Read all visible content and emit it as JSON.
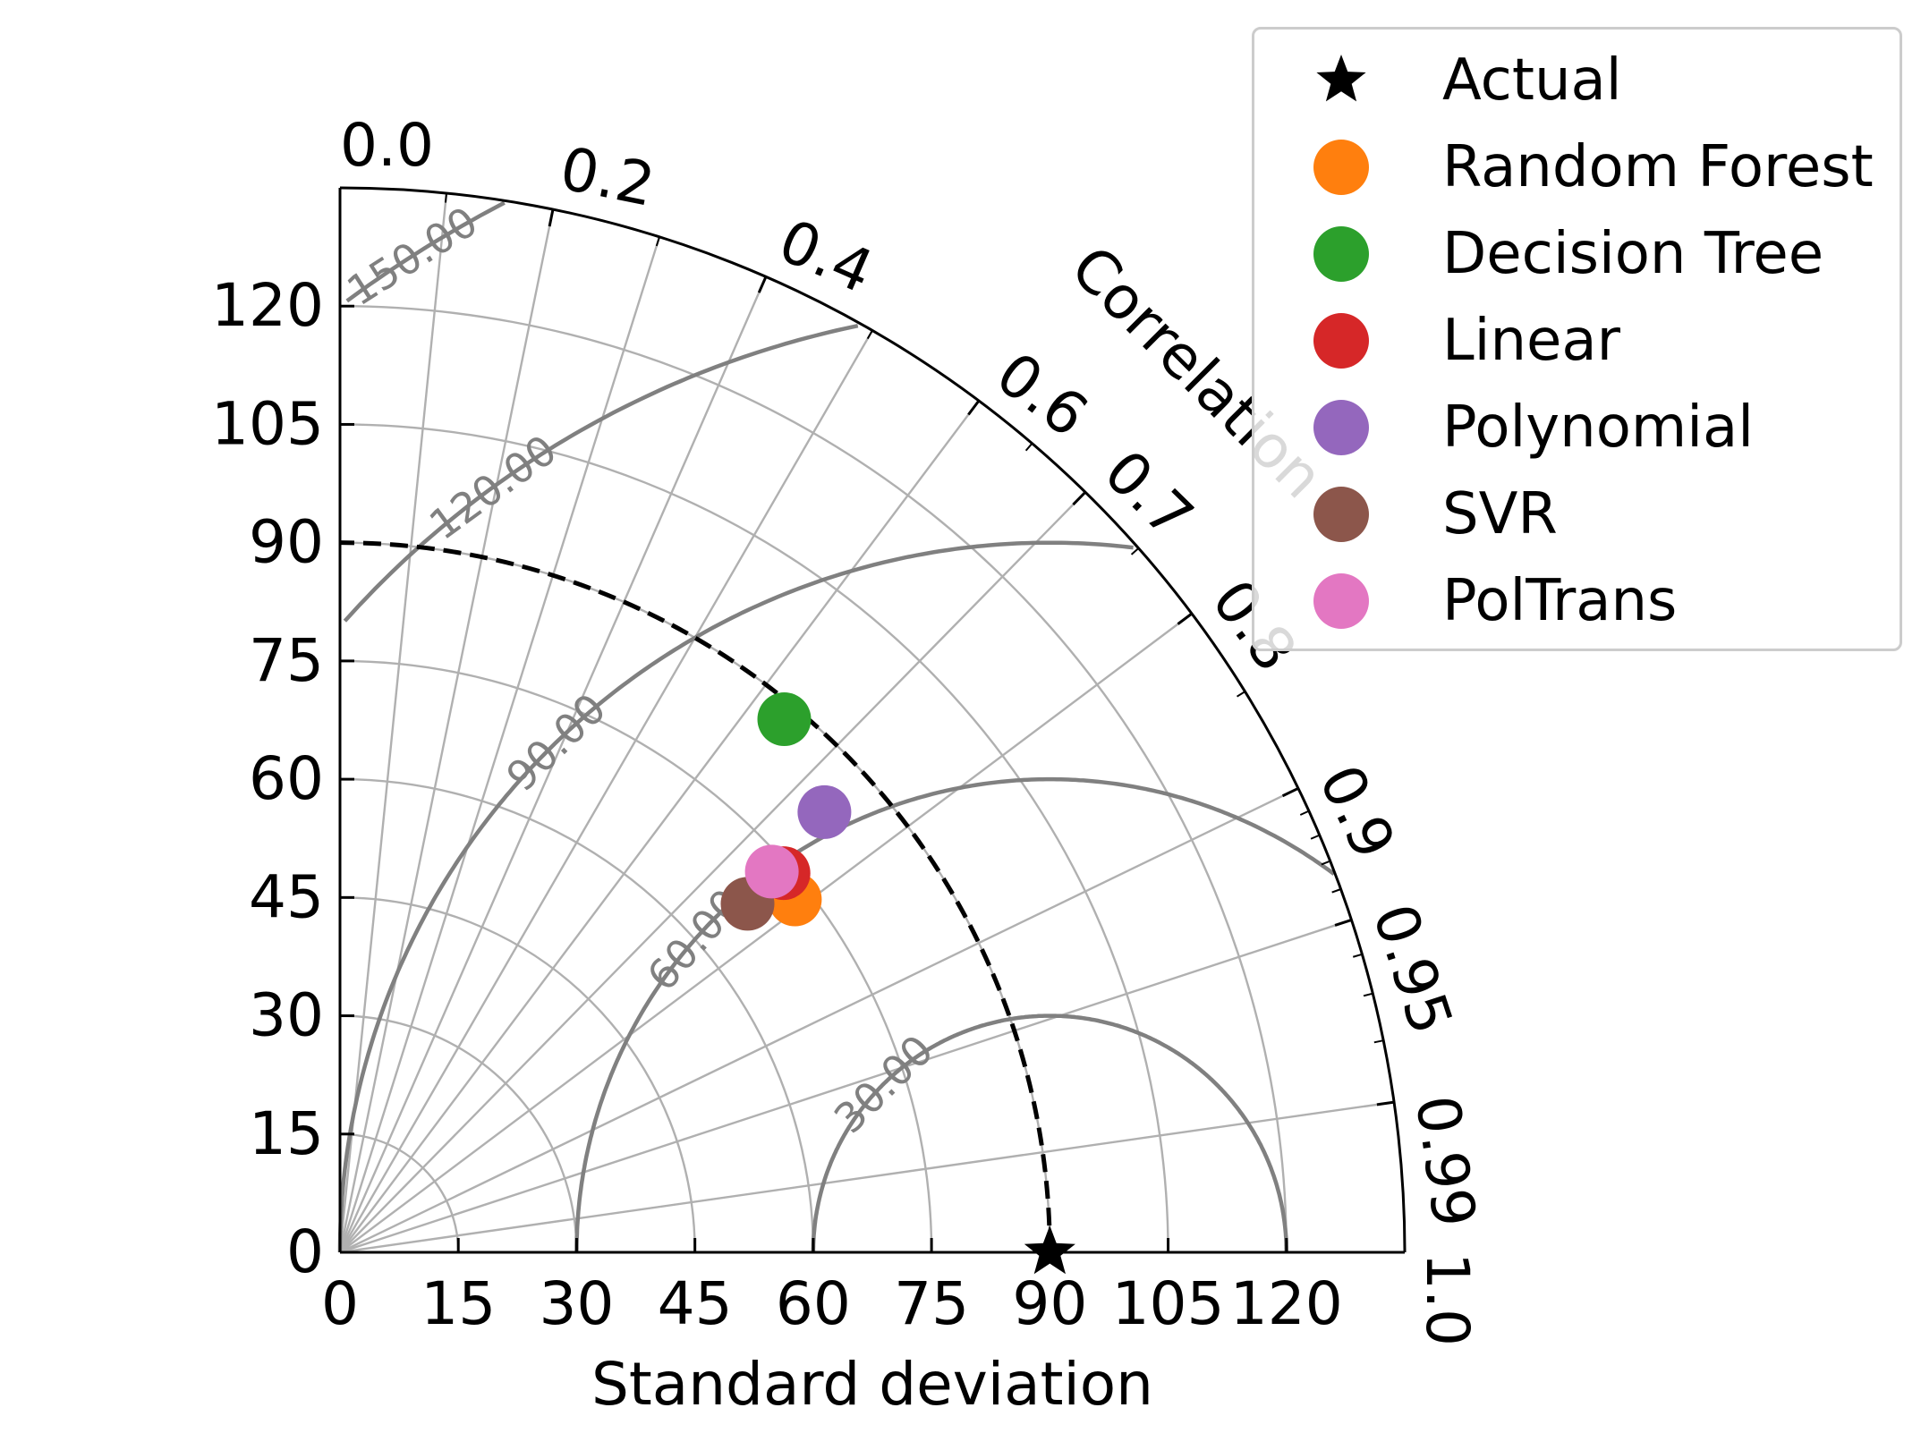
{
  "chart_data": {
    "type": "taylor",
    "xlabel": "Standard deviation",
    "arc_label": "Correlation",
    "std_ticks": [
      0,
      15,
      30,
      45,
      60,
      75,
      90,
      105,
      120
    ],
    "std_max": 135,
    "corr_ticks": [
      "0.0",
      "0.2",
      "0.4",
      "0.6",
      "0.7",
      "0.8",
      "0.9",
      "0.95",
      "0.99",
      "1.0"
    ],
    "rms_contours": [
      30,
      60,
      90,
      120,
      150
    ],
    "rms_labels": [
      "30.00",
      "60.00",
      "90.00",
      "120.00",
      "150.00"
    ],
    "reference": {
      "name": "Actual",
      "std": 90,
      "color": "#000000",
      "marker": "star"
    },
    "series": [
      {
        "name": "Random Forest",
        "std": 73,
        "corr": 0.79,
        "color": "#ff7f0e"
      },
      {
        "name": "Decision Tree",
        "std": 88,
        "corr": 0.64,
        "color": "#2ca02c"
      },
      {
        "name": "Linear",
        "std": 74,
        "corr": 0.76,
        "color": "#d62728"
      },
      {
        "name": "Polynomial",
        "std": 83,
        "corr": 0.74,
        "color": "#9467bd"
      },
      {
        "name": "SVR",
        "std": 68,
        "corr": 0.76,
        "color": "#8c564b"
      },
      {
        "name": "PolTrans",
        "std": 73,
        "corr": 0.75,
        "color": "#e377c2"
      }
    ],
    "legend_position": "top-right"
  }
}
